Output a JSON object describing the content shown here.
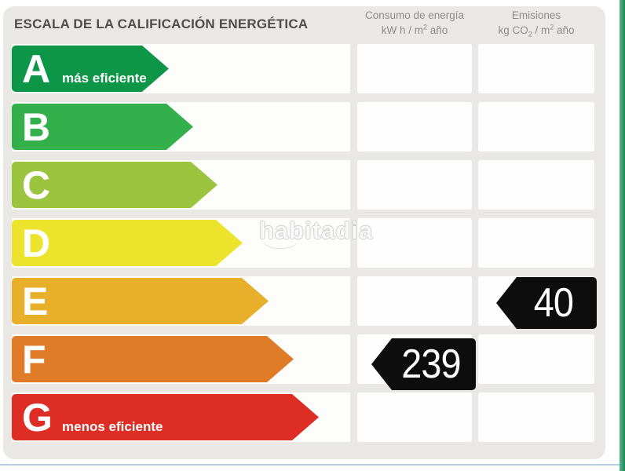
{
  "title": "ESCALA DE LA CALIFICACIÓN ENERGÉTICA",
  "header": {
    "consumo": {
      "title": "Consumo de energía",
      "unit_pre": "kW h / m",
      "unit_sup": "2",
      "unit_post": " año"
    },
    "emisiones": {
      "title": "Emisiones",
      "unit_pre": "kg CO",
      "unit_sub": "2",
      "unit_mid": " / m",
      "unit_sup": "2",
      "unit_post": " año"
    }
  },
  "rows": [
    {
      "grade": "A",
      "label": "más eficiente",
      "color": "#0e9648"
    },
    {
      "grade": "B",
      "label": "",
      "color": "#33af4b"
    },
    {
      "grade": "C",
      "label": "",
      "color": "#9cc43e"
    },
    {
      "grade": "D",
      "label": "",
      "color": "#ece42c"
    },
    {
      "grade": "E",
      "label": "",
      "color": "#e8b02a",
      "emissions": "40"
    },
    {
      "grade": "F",
      "label": "",
      "color": "#e07b27",
      "consumption": "239"
    },
    {
      "grade": "G",
      "label": "menos eficiente",
      "color": "#de2d24"
    }
  ],
  "watermark": "habitadia",
  "colors": {
    "card_bg": "#e9e8e5",
    "row_bg": "#fdfdfc",
    "value_arrow_bg": "#0d0d0d",
    "value_text": "#ffffff",
    "title_text": "#4d4d4d",
    "header_text": "#8c8c8a",
    "accent_strip_green": "#1b8a52",
    "bottom_line_blue": "#b4cfe0"
  },
  "chart_data": {
    "type": "table",
    "title": "ESCALA DE LA CALIFICACIÓN ENERGÉTICA",
    "categories": [
      "A",
      "B",
      "C",
      "D",
      "E",
      "F",
      "G"
    ],
    "category_notes": {
      "A": "más eficiente",
      "G": "menos eficiente"
    },
    "series": [
      {
        "name": "Consumo de energía kW h / m² año",
        "values": [
          null,
          null,
          null,
          null,
          null,
          239,
          null
        ]
      },
      {
        "name": "Emisiones kg CO₂ / m² año",
        "values": [
          null,
          null,
          null,
          null,
          40,
          null,
          null
        ]
      }
    ],
    "scale_colors": [
      "#0e9648",
      "#33af4b",
      "#9cc43e",
      "#ece42c",
      "#e8b02a",
      "#e07b27",
      "#de2d24"
    ]
  }
}
